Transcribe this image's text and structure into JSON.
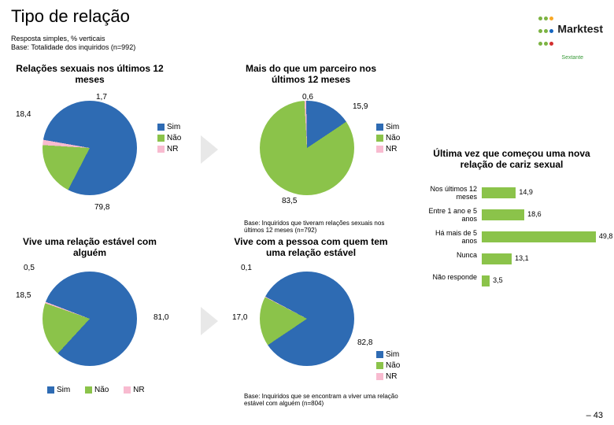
{
  "title": "Tipo de relação",
  "subtitle1": "Resposta simples, % verticais",
  "subtitle2": "Base: Totalidade dos inquiridos (n=992)",
  "logo": {
    "text": "Marktest",
    "sub": "Sextante",
    "dotColors": [
      "#7cb342",
      "#7cb342",
      "#f9a825",
      "#7cb342",
      "#7cb342",
      "#1565c0",
      "#7cb342",
      "#7cb342",
      "#d32f2f"
    ]
  },
  "legendLabels": {
    "sim": "Sim",
    "nao": "Não",
    "nr": "NR"
  },
  "colors": {
    "sim": "#2e6bb3",
    "nao": "#8bc34a",
    "nr": "#f8bbd0",
    "arrow": "#e8e8e8",
    "bar": "#8bc34a"
  },
  "charts": {
    "pie1": {
      "title": "Relações sexuais nos últimos 12 meses",
      "slices": [
        {
          "label": "Sim",
          "value": 79.8,
          "color": "#2e6bb3"
        },
        {
          "label": "Não",
          "value": 18.4,
          "color": "#8bc34a"
        },
        {
          "label": "NR",
          "value": 1.7,
          "color": "#f8bbd0"
        }
      ],
      "rotation": -80,
      "labels": [
        {
          "text": "79,8",
          "pos": "bottom"
        },
        {
          "text": "18,4",
          "pos": "topleft"
        },
        {
          "text": "1,7",
          "pos": "top"
        }
      ]
    },
    "pie2": {
      "title": "Mais do que um parceiro nos últimos 12 meses",
      "slices": [
        {
          "label": "Sim",
          "value": 15.9,
          "color": "#2e6bb3"
        },
        {
          "label": "Não",
          "value": 83.5,
          "color": "#8bc34a"
        },
        {
          "label": "NR",
          "value": 0.6,
          "color": "#f8bbd0"
        }
      ],
      "rotation": -1,
      "labels": [
        {
          "text": "15,9",
          "pos": "topright"
        },
        {
          "text": "83,5",
          "pos": "bottom"
        },
        {
          "text": "0,6",
          "pos": "top"
        }
      ],
      "base": "Base: Inquiridos que tiveram relações sexuais nos últimos 12 meses (n=792)"
    },
    "pie3": {
      "title": "Vive uma relação estável com alguém",
      "slices": [
        {
          "label": "Sim",
          "value": 81.0,
          "color": "#2e6bb3"
        },
        {
          "label": "Não",
          "value": 18.5,
          "color": "#8bc34a"
        },
        {
          "label": "NR",
          "value": 0.5,
          "color": "#f8bbd0"
        }
      ],
      "rotation": -69,
      "labels": [
        {
          "text": "81,0",
          "pos": "right"
        },
        {
          "text": "18,5",
          "pos": "topleft"
        },
        {
          "text": "0,5",
          "pos": "top"
        }
      ]
    },
    "pie4": {
      "title": "Vive com a pessoa com quem tem uma relação estável",
      "slices": [
        {
          "label": "Sim",
          "value": 82.8,
          "color": "#2e6bb3"
        },
        {
          "label": "Não",
          "value": 17.0,
          "color": "#8bc34a"
        },
        {
          "label": "NR",
          "value": 0.1,
          "color": "#f8bbd0"
        }
      ],
      "rotation": -62,
      "labels": [
        {
          "text": "82,8",
          "pos": "right"
        },
        {
          "text": "17,0",
          "pos": "topleft"
        },
        {
          "text": "0,1",
          "pos": "top"
        }
      ],
      "base": "Base: Inquiridos que se encontram a viver uma relação estável com alguém (n=804)"
    }
  },
  "barChart": {
    "title": "Última vez que começou uma nova relação de cariz sexual",
    "xMax": 55,
    "bars": [
      {
        "label": "Nos últimos 12 meses",
        "value": 14.9,
        "text": "14,9"
      },
      {
        "label": "Entre 1 ano e 5 anos",
        "value": 18.6,
        "text": "18,6"
      },
      {
        "label": "Há mais de 5 anos",
        "value": 49.8,
        "text": "49,8"
      },
      {
        "label": "Nunca",
        "value": 13.1,
        "text": "13,1"
      },
      {
        "label": "Não responde",
        "value": 3.5,
        "text": "3,5"
      }
    ]
  },
  "pageNumber": "– 43"
}
